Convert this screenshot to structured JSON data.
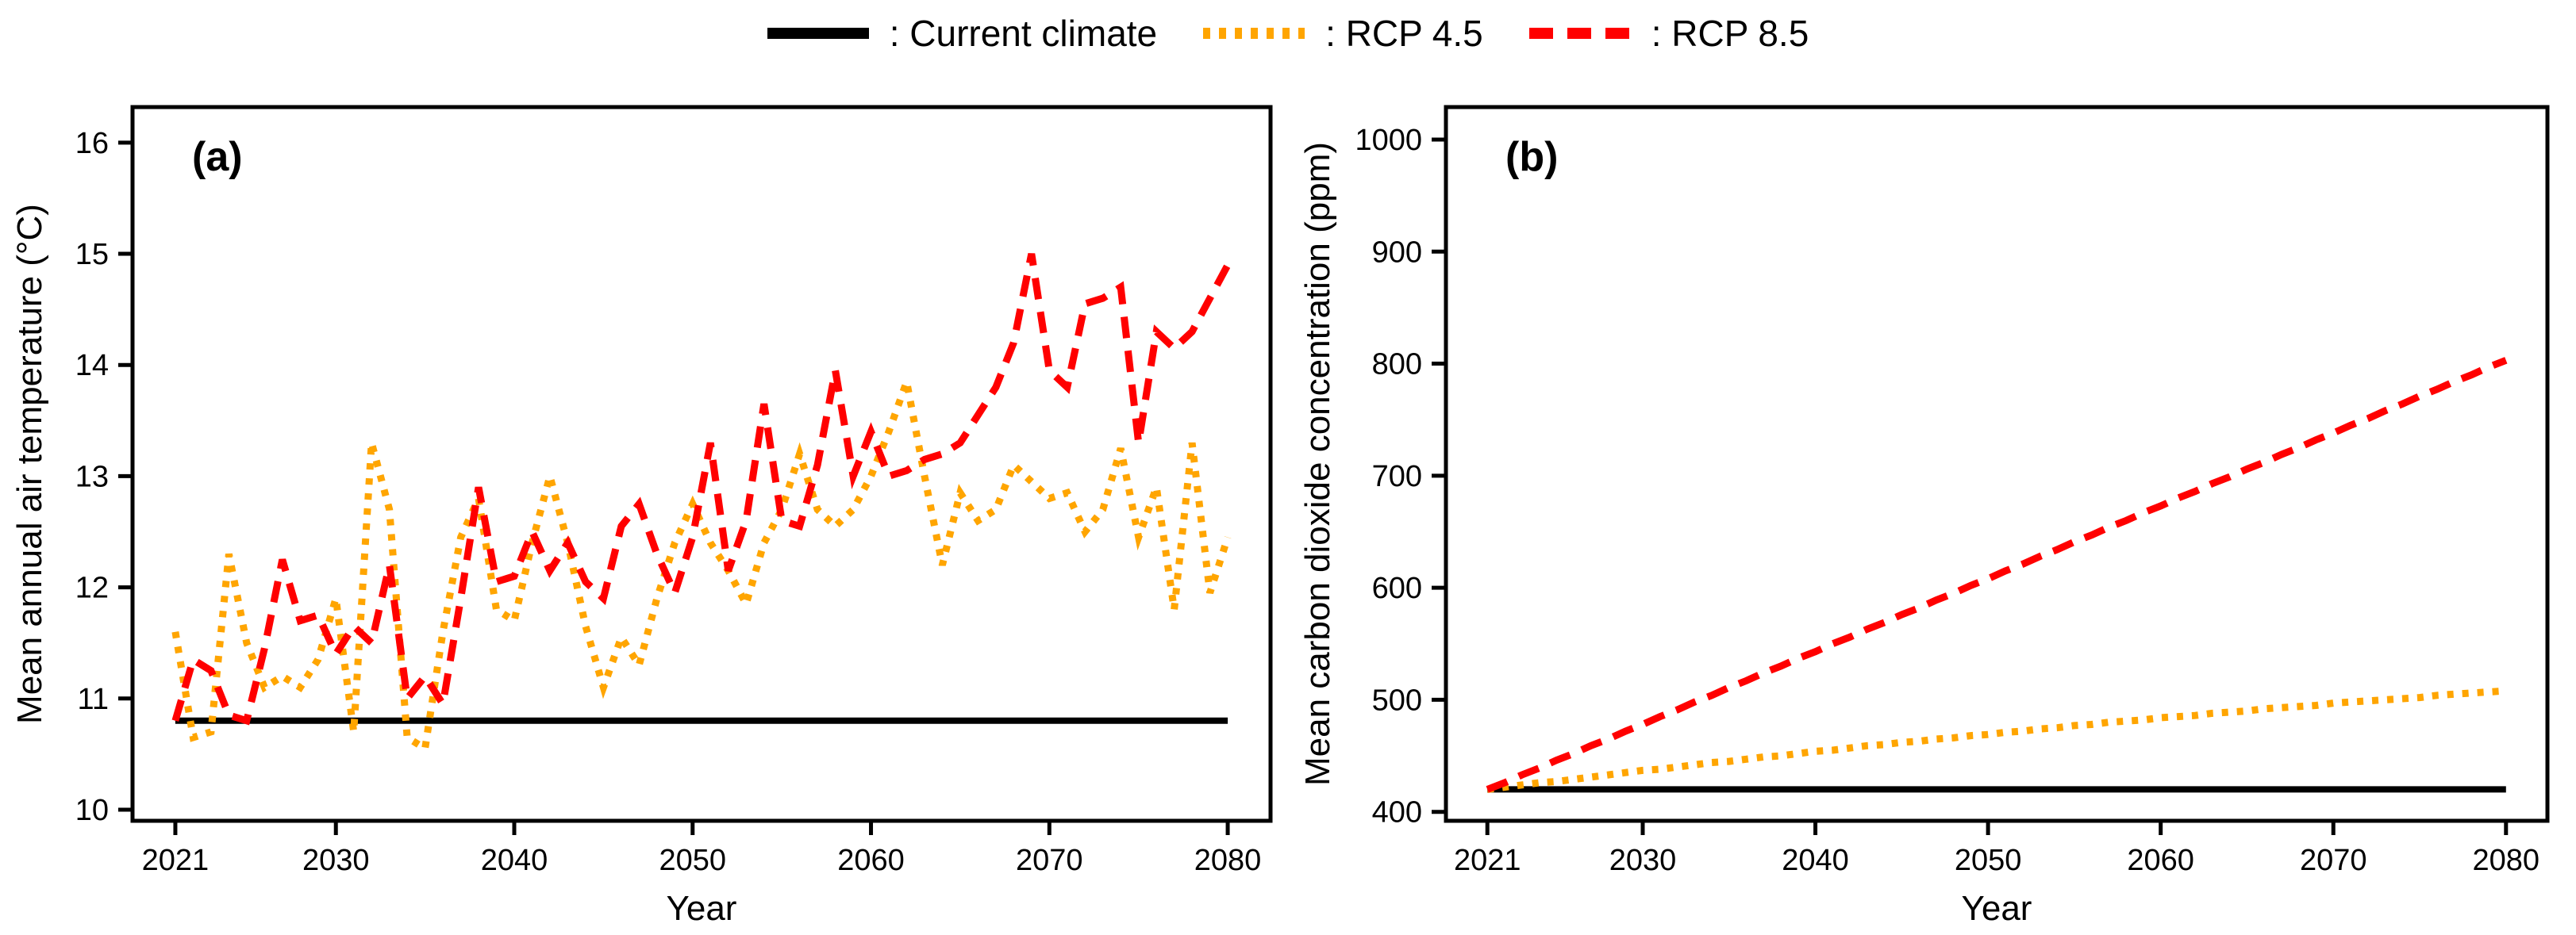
{
  "legend": {
    "items": [
      {
        "name": "current-climate",
        "label": ": Current climate",
        "color": "#000000",
        "line_style": "solid"
      },
      {
        "name": "rcp-45",
        "label": ": RCP 4.5",
        "color": "#FFA500",
        "line_style": "dotted"
      },
      {
        "name": "rcp-85",
        "label": ": RCP 8.5",
        "color": "#FF0000",
        "line_style": "dashed"
      }
    ]
  },
  "chart_data": [
    {
      "type": "line",
      "panel_label": "(a)",
      "xlabel": "Year",
      "ylabel": "Mean annual air temperature (°C)",
      "x_ticks": [
        2021,
        2030,
        2040,
        2050,
        2060,
        2070,
        2080
      ],
      "y_ticks": [
        10,
        11,
        12,
        13,
        14,
        15,
        16
      ],
      "xlim": [
        2018.6,
        2082.4
      ],
      "ylim": [
        9.9,
        16.32
      ],
      "grid": false,
      "years": [
        2021,
        2022,
        2023,
        2024,
        2025,
        2026,
        2027,
        2028,
        2029,
        2030,
        2031,
        2032,
        2033,
        2034,
        2035,
        2036,
        2037,
        2038,
        2039,
        2040,
        2041,
        2042,
        2043,
        2044,
        2045,
        2046,
        2047,
        2048,
        2049,
        2050,
        2051,
        2052,
        2053,
        2054,
        2055,
        2056,
        2057,
        2058,
        2059,
        2060,
        2061,
        2062,
        2063,
        2064,
        2065,
        2066,
        2067,
        2068,
        2069,
        2070,
        2071,
        2072,
        2073,
        2074,
        2075,
        2076,
        2077,
        2078,
        2079,
        2080
      ],
      "series": [
        {
          "name": "Current climate",
          "color": "#000000",
          "line_style": "solid",
          "constant": 10.8
        },
        {
          "name": "RCP 4.5",
          "color": "#FFA500",
          "line_style": "dotted",
          "values": [
            11.6,
            10.65,
            10.7,
            12.3,
            11.5,
            11.1,
            11.2,
            11.1,
            11.35,
            11.9,
            10.7,
            13.3,
            12.7,
            10.65,
            10.55,
            11.6,
            12.45,
            12.8,
            11.8,
            11.7,
            12.4,
            13.0,
            12.4,
            11.65,
            11.1,
            11.55,
            11.3,
            11.9,
            12.4,
            12.75,
            12.4,
            12.15,
            11.85,
            12.4,
            12.7,
            13.2,
            12.7,
            12.55,
            12.7,
            13.0,
            13.4,
            13.85,
            13.0,
            12.2,
            12.85,
            12.6,
            12.7,
            13.1,
            12.95,
            12.8,
            12.85,
            12.5,
            12.7,
            13.25,
            12.45,
            12.9,
            11.8,
            13.3,
            11.95,
            12.45
          ]
        },
        {
          "name": "RCP 8.5",
          "color": "#FF0000",
          "line_style": "dashed",
          "values": [
            10.8,
            11.35,
            11.25,
            10.85,
            10.8,
            11.45,
            12.25,
            11.7,
            11.75,
            11.4,
            11.65,
            11.5,
            12.2,
            11.0,
            11.2,
            10.95,
            11.9,
            12.9,
            12.05,
            12.1,
            12.5,
            12.15,
            12.4,
            12.05,
            11.9,
            12.55,
            12.75,
            12.3,
            11.95,
            12.45,
            13.3,
            12.15,
            12.6,
            13.65,
            12.6,
            12.55,
            13.1,
            13.95,
            13.0,
            13.4,
            13.0,
            13.05,
            13.15,
            13.2,
            13.3,
            13.55,
            13.8,
            14.2,
            15.0,
            13.95,
            13.8,
            14.55,
            14.6,
            14.7,
            13.3,
            14.3,
            14.15,
            14.3,
            14.6,
            14.9
          ]
        }
      ]
    },
    {
      "type": "line",
      "panel_label": "(b)",
      "xlabel": "Year",
      "ylabel": "Mean carbon dioxide concentration (ppm)",
      "x_ticks": [
        2021,
        2030,
        2040,
        2050,
        2060,
        2070,
        2080
      ],
      "y_ticks": [
        400,
        500,
        600,
        700,
        800,
        900,
        1000
      ],
      "xlim": [
        2018.6,
        2082.4
      ],
      "ylim": [
        392,
        1029
      ],
      "grid": false,
      "years": [
        2021,
        2022,
        2023,
        2024,
        2025,
        2026,
        2027,
        2028,
        2029,
        2030,
        2031,
        2032,
        2033,
        2034,
        2035,
        2036,
        2037,
        2038,
        2039,
        2040,
        2041,
        2042,
        2043,
        2044,
        2045,
        2046,
        2047,
        2048,
        2049,
        2050,
        2051,
        2052,
        2053,
        2054,
        2055,
        2056,
        2057,
        2058,
        2059,
        2060,
        2061,
        2062,
        2063,
        2064,
        2065,
        2066,
        2067,
        2068,
        2069,
        2070,
        2071,
        2072,
        2073,
        2074,
        2075,
        2076,
        2077,
        2078,
        2079,
        2080
      ],
      "series": [
        {
          "name": "Current climate",
          "color": "#000000",
          "line_style": "solid",
          "constant": 420
        },
        {
          "name": "RCP 4.5",
          "color": "#FFA500",
          "line_style": "dotted",
          "values": [
            420,
            422,
            424,
            426,
            427,
            429,
            431,
            433,
            435,
            437,
            438,
            440,
            442,
            444,
            445,
            447,
            449,
            450,
            452,
            454,
            455,
            457,
            459,
            460,
            462,
            463,
            465,
            466,
            468,
            469,
            471,
            472,
            474,
            475,
            477,
            478,
            480,
            481,
            482,
            484,
            485,
            486,
            488,
            489,
            490,
            492,
            493,
            494,
            495,
            497,
            498,
            499,
            500,
            501,
            502,
            504,
            505,
            506,
            507,
            508
          ]
        },
        {
          "name": "RCP 8.5",
          "color": "#FF0000",
          "line_style": "dashed",
          "values": [
            420,
            426,
            433,
            439,
            446,
            452,
            459,
            465,
            472,
            478,
            485,
            491,
            498,
            504,
            511,
            517,
            524,
            530,
            537,
            543,
            550,
            556,
            563,
            569,
            576,
            582,
            589,
            595,
            602,
            608,
            615,
            621,
            628,
            634,
            641,
            647,
            654,
            660,
            667,
            673,
            680,
            686,
            693,
            699,
            706,
            712,
            719,
            725,
            732,
            738,
            745,
            751,
            758,
            764,
            771,
            777,
            784,
            790,
            797,
            803
          ]
        }
      ]
    }
  ]
}
